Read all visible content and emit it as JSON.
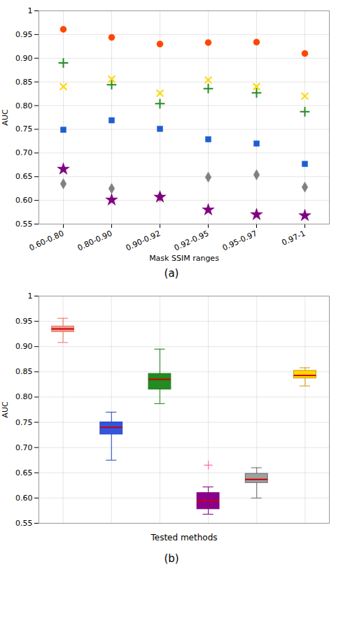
{
  "chart_data": [
    {
      "type": "scatter",
      "categories": [
        "0.60-0.80",
        "0.80-0.90",
        "0.90-0.92",
        "0.92-0.95",
        "0.95-0.97",
        "0.97-1"
      ],
      "xlabel": "Mask SSIM ranges",
      "ylabel": "AUC",
      "ylim": [
        0.55,
        1.0
      ],
      "yticks": [
        0.55,
        {
          "value": 0.6,
          "label": "0.60"
        },
        0.65,
        {
          "value": 0.7,
          "label": "0.70"
        },
        0.75,
        {
          "value": 0.8,
          "label": "0.80"
        },
        0.85,
        {
          "value": 0.9,
          "label": "0.90"
        },
        0.95,
        1
      ],
      "grid": true,
      "series": [
        {
          "color": "#FF4500",
          "marker": "circle",
          "values": [
            0.961,
            0.944,
            0.93,
            0.933,
            0.934,
            0.91
          ]
        },
        {
          "color": "#228B22",
          "marker": "plus",
          "values": [
            0.89,
            0.844,
            0.804,
            0.836,
            0.827,
            0.787
          ]
        },
        {
          "color": "#FFD700",
          "marker": "x",
          "values": [
            0.84,
            0.856,
            0.826,
            0.854,
            0.84,
            0.82
          ]
        },
        {
          "color": "#1E5FD0",
          "marker": "square",
          "values": [
            0.749,
            0.769,
            0.751,
            0.729,
            0.72,
            0.677
          ]
        },
        {
          "color": "#808080",
          "marker": "diamond",
          "values": [
            0.635,
            0.625,
            0.608,
            0.649,
            0.654,
            0.628
          ]
        },
        {
          "color": "#800080",
          "marker": "star",
          "values": [
            0.666,
            0.601,
            0.607,
            0.58,
            0.57,
            0.568
          ]
        }
      ],
      "annotation": "(a)"
    },
    {
      "type": "box",
      "xlabel": "Tested methods",
      "ylabel": "AUC",
      "ylim": [
        0.55,
        1.0
      ],
      "yticks": [
        0.55,
        {
          "value": 0.6,
          "label": "0.60"
        },
        0.65,
        {
          "value": 0.7,
          "label": "0.70"
        },
        0.75,
        {
          "value": 0.8,
          "label": "0.80"
        },
        0.85,
        {
          "value": 0.9,
          "label": "0.90"
        },
        0.95,
        1
      ],
      "grid": true,
      "tick_labels": "y",
      "flier_color": "#FF69B4",
      "boxes": [
        {
          "edge_color": "#E87060",
          "face_color": "#F4A090",
          "median_color": "#CC0000",
          "whisker_lo": 0.908,
          "q1": 0.929,
          "median": 0.935,
          "q3": 0.94,
          "whisker_hi": 0.956,
          "fliers": []
        },
        {
          "edge_color": "#2040CC",
          "face_color": "#3355DD",
          "median_color": "#CC0000",
          "whisker_lo": 0.675,
          "q1": 0.726,
          "median": 0.74,
          "q3": 0.75,
          "whisker_hi": 0.77,
          "fliers": []
        },
        {
          "edge_color": "#1A7A1A",
          "face_color": "#228B22",
          "median_color": "#CC0000",
          "whisker_lo": 0.787,
          "q1": 0.815,
          "median": 0.835,
          "q3": 0.846,
          "whisker_hi": 0.895,
          "fliers": []
        },
        {
          "edge_color": "#7B007B",
          "face_color": "#8B008B",
          "median_color": "#CC0000",
          "whisker_lo": 0.568,
          "q1": 0.578,
          "median": 0.595,
          "q3": 0.61,
          "whisker_hi": 0.622,
          "fliers": [
            0.665
          ]
        },
        {
          "edge_color": "#666666",
          "face_color": "#A0A0A0",
          "median_color": "#CC0000",
          "whisker_lo": 0.6,
          "q1": 0.63,
          "median": 0.637,
          "q3": 0.648,
          "whisker_hi": 0.66,
          "fliers": []
        },
        {
          "edge_color": "#CC9900",
          "face_color": "#FFD700",
          "median_color": "#CC0000",
          "whisker_lo": 0.822,
          "q1": 0.837,
          "median": 0.843,
          "q3": 0.852,
          "whisker_hi": 0.858,
          "fliers": []
        }
      ],
      "annotation": "(b)"
    }
  ]
}
